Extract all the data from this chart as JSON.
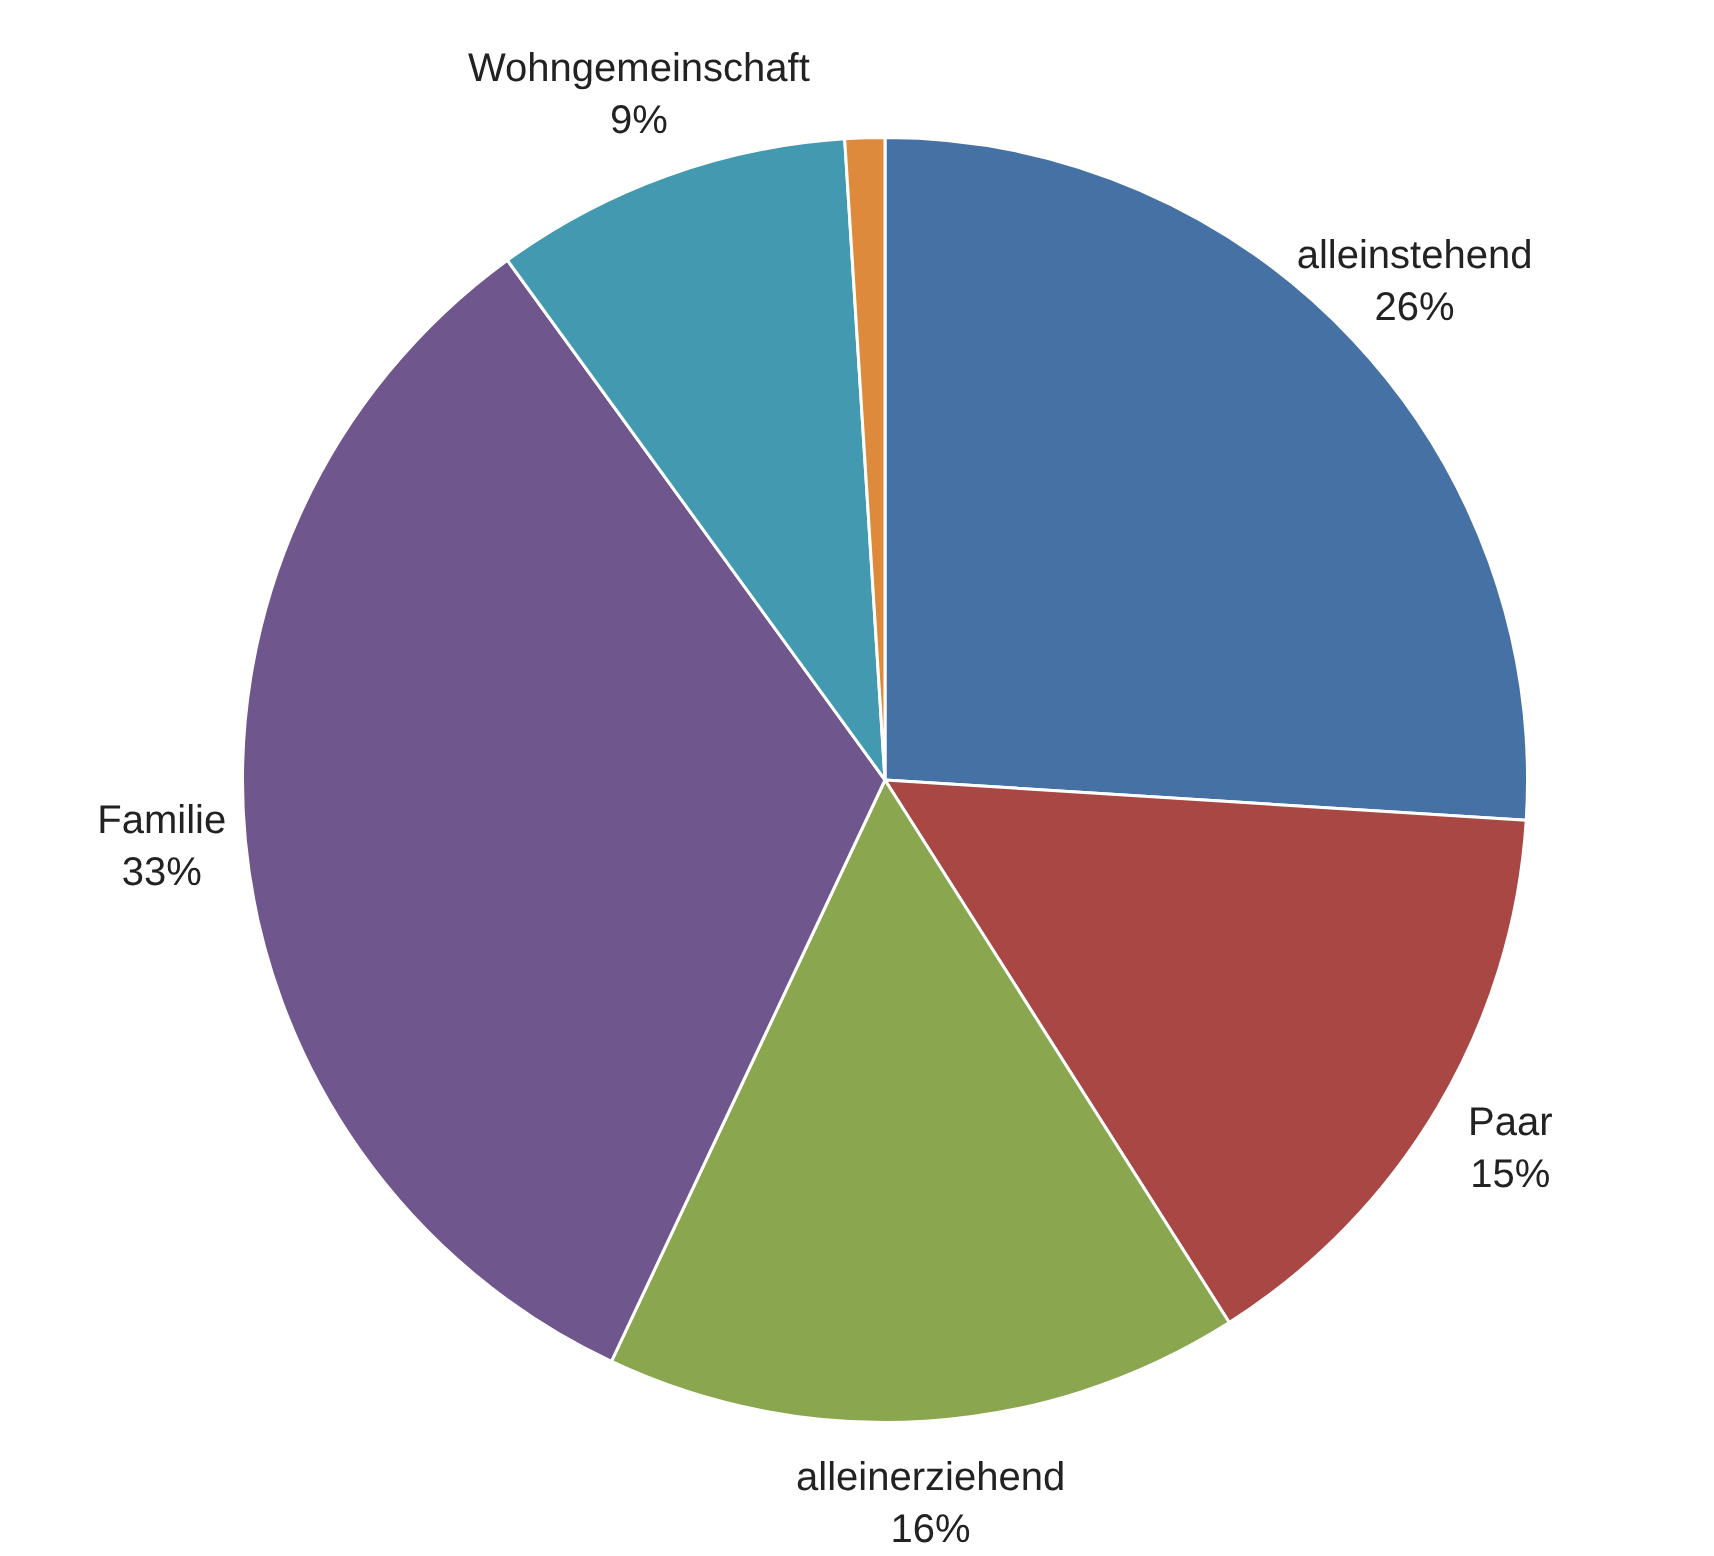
{
  "chart_data": {
    "type": "pie",
    "categories": [
      "alleinstehend",
      "Paar",
      "alleinerziehend",
      "Familie",
      "Wohngemeinschaft",
      null
    ],
    "values": [
      26,
      15,
      16,
      33,
      9,
      1
    ],
    "colors": [
      "#4671a5",
      "#a94745",
      "#8aa64f",
      "#6f568c",
      "#4399b0",
      "#dd8a3c"
    ],
    "value_labels": [
      "26%",
      "15%",
      "16%",
      "33%",
      "9%",
      null
    ],
    "legend": false
  }
}
